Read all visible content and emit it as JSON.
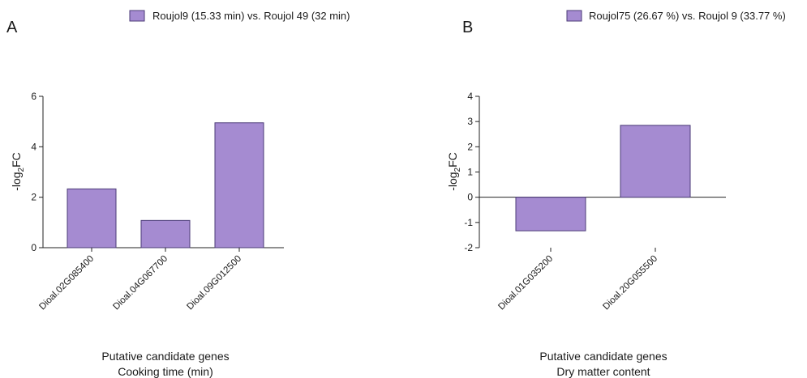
{
  "colors": {
    "bar_fill": "#A58BD1",
    "bar_stroke": "#4B3B77",
    "axis": "#222222"
  },
  "chart_data": [
    {
      "panel": "A",
      "type": "bar",
      "legend": "Roujol9 (15.33 min) vs. Roujol 49 (32 min)",
      "categories": [
        "Dioal.02G085400",
        "Dioal.04G067700",
        "Dioal.09G012500"
      ],
      "series": [
        {
          "name": "Roujol9 (15.33 min) vs. Roujol 49 (32 min)",
          "values": [
            2.33,
            1.08,
            4.95
          ]
        }
      ],
      "ylabel": "-log",
      "ylabel_sub": "2",
      "ylabel_suffix": "FC",
      "xlabel_line1": "Putative candidate genes",
      "xlabel_line2": "Cooking time (min)",
      "ylim": [
        0,
        6
      ],
      "yticks": [
        0,
        2,
        4,
        6
      ],
      "grid": false,
      "legend_position": "top"
    },
    {
      "panel": "B",
      "type": "bar",
      "legend": "Roujol75 (26.67 %) vs. Roujol 9 (33.77 %)",
      "categories": [
        "Dioal.01G035200",
        "Dioal.20G055500"
      ],
      "series": [
        {
          "name": "Roujol75 (26.67 %) vs. Roujol 9 (33.77 %)",
          "values": [
            -1.33,
            2.85
          ]
        }
      ],
      "ylabel": "-log",
      "ylabel_sub": "2",
      "ylabel_suffix": "FC",
      "xlabel_line1": "Putative candidate genes",
      "xlabel_line2": "Dry matter content",
      "ylim": [
        -2,
        4
      ],
      "yticks": [
        -2,
        -1,
        0,
        1,
        2,
        3,
        4
      ],
      "grid": false,
      "legend_position": "top-right"
    }
  ]
}
